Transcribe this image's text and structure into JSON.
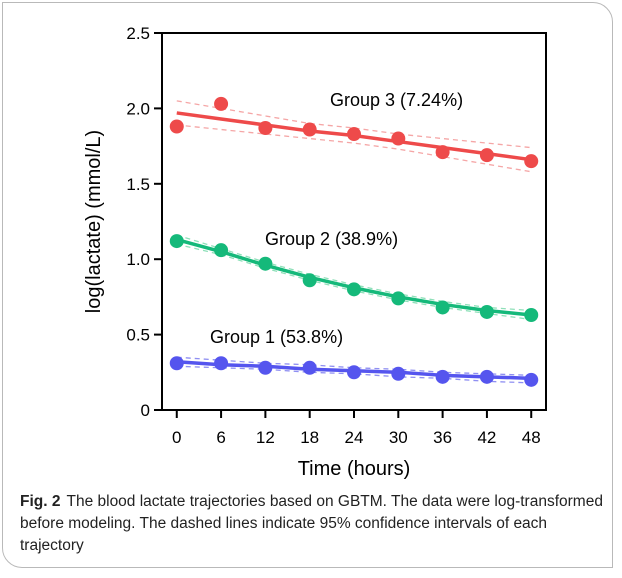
{
  "caption": {
    "label": "Fig. 2",
    "text": "The blood lactate trajectories based on GBTM. The data were log-transformed before modeling. The dashed lines indicate 95% confidence intervals of each trajectory"
  },
  "chart_data": {
    "type": "line",
    "title": "",
    "xlabel": "Time (hours)",
    "ylabel": "log(lactate) (mmol/L)",
    "x": [
      0,
      6,
      12,
      18,
      24,
      30,
      36,
      42,
      48
    ],
    "xlim": [
      -2,
      50
    ],
    "ylim": [
      0,
      2.5
    ],
    "yticks": [
      0,
      0.5,
      1.0,
      1.5,
      2.0,
      2.5
    ],
    "ytick_labels": [
      "0",
      "0.5",
      "1.0",
      "1.5",
      "2.0",
      "2.5"
    ],
    "xtick_labels": [
      "0",
      "6",
      "12",
      "18",
      "24",
      "30",
      "36",
      "42",
      "48"
    ],
    "grid": false,
    "legend": "none",
    "series": [
      {
        "name": "Group 1 (53.8%)",
        "color": "#5555ee",
        "ci_color": "#8f8ff2",
        "values": [
          0.31,
          0.31,
          0.28,
          0.28,
          0.25,
          0.24,
          0.22,
          0.22,
          0.2
        ],
        "fit": [
          0.32,
          0.3,
          0.29,
          0.27,
          0.26,
          0.25,
          0.23,
          0.22,
          0.21
        ],
        "ci_lower": [
          0.29,
          0.28,
          0.27,
          0.25,
          0.24,
          0.22,
          0.21,
          0.19,
          0.18
        ],
        "ci_upper": [
          0.35,
          0.33,
          0.31,
          0.3,
          0.28,
          0.27,
          0.25,
          0.24,
          0.23
        ]
      },
      {
        "name": "Group 2 (38.9%)",
        "color": "#15b97a",
        "ci_color": "#8fe0b9",
        "values": [
          1.12,
          1.06,
          0.97,
          0.86,
          0.8,
          0.74,
          0.68,
          0.65,
          0.63
        ],
        "fit": [
          1.13,
          1.05,
          0.96,
          0.88,
          0.81,
          0.75,
          0.7,
          0.66,
          0.63
        ],
        "ci_lower": [
          1.1,
          1.03,
          0.94,
          0.86,
          0.79,
          0.73,
          0.68,
          0.64,
          0.6
        ],
        "ci_upper": [
          1.16,
          1.07,
          0.98,
          0.9,
          0.83,
          0.77,
          0.72,
          0.68,
          0.66
        ]
      },
      {
        "name": "Group 3 (7.24%)",
        "color": "#ee4a4a",
        "ci_color": "#f5a6a6",
        "values": [
          1.88,
          2.03,
          1.87,
          1.86,
          1.83,
          1.8,
          1.71,
          1.69,
          1.65
        ],
        "fit": [
          1.97,
          1.93,
          1.89,
          1.85,
          1.82,
          1.78,
          1.74,
          1.7,
          1.66
        ],
        "ci_lower": [
          1.89,
          1.86,
          1.83,
          1.8,
          1.77,
          1.73,
          1.68,
          1.63,
          1.58
        ],
        "ci_upper": [
          2.05,
          2.0,
          1.95,
          1.9,
          1.87,
          1.83,
          1.8,
          1.77,
          1.74
        ]
      }
    ]
  }
}
